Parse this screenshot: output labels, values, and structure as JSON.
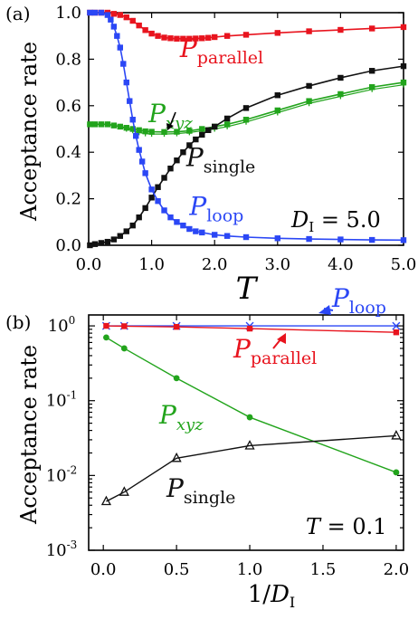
{
  "chart_data": [
    {
      "panel": "(a)",
      "type": "line",
      "xlabel": "T",
      "ylabel": "Acceptance rate",
      "xlim": [
        0.0,
        5.0
      ],
      "ylim": [
        0.0,
        1.0
      ],
      "x_ticks": [
        "0.0",
        "1.0",
        "2.0",
        "3.0",
        "4.0",
        "5.0"
      ],
      "y_ticks": [
        "0.0",
        "0.2",
        "0.4",
        "0.6",
        "0.8",
        "1.0"
      ],
      "annotation": "D_I = 5.0",
      "series": [
        {
          "name": "P_parallel",
          "base": "P",
          "sub": "parallel",
          "color": "#e8141e",
          "marker": "square",
          "x": [
            0.02,
            0.1,
            0.2,
            0.3,
            0.4,
            0.5,
            0.6,
            0.7,
            0.8,
            0.9,
            1.0,
            1.1,
            1.2,
            1.3,
            1.4,
            1.5,
            1.6,
            1.7,
            1.8,
            1.9,
            2.0,
            2.2,
            2.5,
            3.0,
            3.5,
            4.0,
            4.5,
            5.0
          ],
          "y": [
            1.0,
            1.0,
            1.0,
            1.0,
            0.995,
            0.99,
            0.98,
            0.965,
            0.945,
            0.925,
            0.91,
            0.9,
            0.893,
            0.89,
            0.888,
            0.888,
            0.888,
            0.889,
            0.89,
            0.892,
            0.895,
            0.9,
            0.905,
            0.913,
            0.92,
            0.926,
            0.932,
            0.938
          ],
          "label_pos": [
            1.45,
            0.81
          ]
        },
        {
          "name": "P_xyz",
          "base": "P",
          "sub": "xyz",
          "color": "#22a41c",
          "marker": "square",
          "x": [
            0.02,
            0.1,
            0.2,
            0.3,
            0.4,
            0.5,
            0.6,
            0.7,
            0.8,
            0.9,
            1.0,
            1.2,
            1.4,
            1.6,
            1.8,
            2.0,
            2.2,
            2.5,
            3.0,
            3.5,
            4.0,
            4.5,
            5.0
          ],
          "y": [
            0.52,
            0.52,
            0.52,
            0.52,
            0.515,
            0.51,
            0.505,
            0.5,
            0.495,
            0.49,
            0.488,
            0.487,
            0.488,
            0.492,
            0.5,
            0.51,
            0.52,
            0.54,
            0.58,
            0.62,
            0.65,
            0.68,
            0.7
          ],
          "y2": [
            0.52,
            0.52,
            0.52,
            0.52,
            0.515,
            0.51,
            0.5,
            0.493,
            0.485,
            0.48,
            0.478,
            0.478,
            0.48,
            0.485,
            0.492,
            0.5,
            0.51,
            0.53,
            0.57,
            0.61,
            0.64,
            0.67,
            0.69
          ],
          "label_pos": [
            0.95,
            0.53
          ]
        },
        {
          "name": "P_single",
          "base": "P",
          "sub": "single",
          "color": "#111111",
          "marker": "square",
          "x": [
            0.02,
            0.1,
            0.2,
            0.3,
            0.4,
            0.5,
            0.6,
            0.7,
            0.8,
            0.9,
            1.0,
            1.1,
            1.2,
            1.3,
            1.4,
            1.5,
            1.6,
            1.7,
            1.8,
            1.9,
            2.0,
            2.2,
            2.5,
            3.0,
            3.5,
            4.0,
            4.5,
            5.0
          ],
          "y": [
            0.0,
            0.005,
            0.01,
            0.015,
            0.025,
            0.04,
            0.06,
            0.085,
            0.12,
            0.16,
            0.205,
            0.25,
            0.29,
            0.33,
            0.365,
            0.4,
            0.43,
            0.455,
            0.475,
            0.495,
            0.51,
            0.545,
            0.59,
            0.645,
            0.685,
            0.72,
            0.75,
            0.77
          ],
          "label_pos": [
            1.55,
            0.34
          ]
        },
        {
          "name": "P_loop",
          "base": "P",
          "sub": "loop",
          "color": "#2b47f5",
          "marker": "square",
          "x": [
            0.02,
            0.1,
            0.2,
            0.3,
            0.35,
            0.4,
            0.45,
            0.5,
            0.55,
            0.6,
            0.65,
            0.7,
            0.75,
            0.8,
            0.85,
            0.9,
            1.0,
            1.1,
            1.2,
            1.3,
            1.4,
            1.5,
            1.6,
            1.7,
            1.8,
            2.0,
            2.2,
            2.5,
            3.0,
            3.5,
            4.0,
            4.5,
            5.0
          ],
          "y": [
            1.0,
            1.0,
            1.0,
            0.99,
            0.97,
            0.94,
            0.9,
            0.85,
            0.78,
            0.7,
            0.62,
            0.54,
            0.47,
            0.41,
            0.36,
            0.31,
            0.24,
            0.19,
            0.15,
            0.12,
            0.1,
            0.085,
            0.07,
            0.06,
            0.055,
            0.045,
            0.04,
            0.035,
            0.03,
            0.027,
            0.025,
            0.023,
            0.022
          ],
          "label_pos": [
            1.6,
            0.13
          ]
        }
      ]
    },
    {
      "panel": "(b)",
      "type": "line",
      "xlabel": "1/D_I",
      "ylabel": "Acceptance rate",
      "yscale": "log",
      "xlim": [
        -0.1,
        2.05
      ],
      "ylim": [
        0.001,
        1.4
      ],
      "x_ticks": [
        "0.0",
        "0.5",
        "1.0",
        "1.5",
        "2.0"
      ],
      "annotation": "T = 0.1",
      "series": [
        {
          "name": "P_loop",
          "base": "P",
          "sub": "loop",
          "color": "#2b47f5",
          "marker": "cross",
          "x": [
            0.02,
            0.143,
            0.5,
            1.0,
            2.0
          ],
          "y": [
            1.0,
            1.0,
            1.0,
            1.0,
            1.0
          ]
        },
        {
          "name": "P_parallel",
          "base": "P",
          "sub": "parallel",
          "color": "#e8141e",
          "marker": "square",
          "x": [
            0.02,
            0.143,
            0.5,
            1.0,
            2.0
          ],
          "y": [
            1.0,
            0.99,
            0.97,
            0.92,
            0.82
          ]
        },
        {
          "name": "P_xyz",
          "base": "P",
          "sub": "xyz",
          "color": "#22a41c",
          "marker": "circle",
          "x": [
            0.02,
            0.143,
            0.5,
            1.0,
            2.0
          ],
          "y": [
            0.7,
            0.5,
            0.2,
            0.06,
            0.011
          ]
        },
        {
          "name": "P_single",
          "base": "P",
          "sub": "single",
          "color": "#111111",
          "marker": "triangle",
          "x": [
            0.02,
            0.143,
            0.5,
            1.0,
            2.0
          ],
          "y": [
            0.0045,
            0.006,
            0.017,
            0.025,
            0.034
          ]
        }
      ]
    }
  ]
}
